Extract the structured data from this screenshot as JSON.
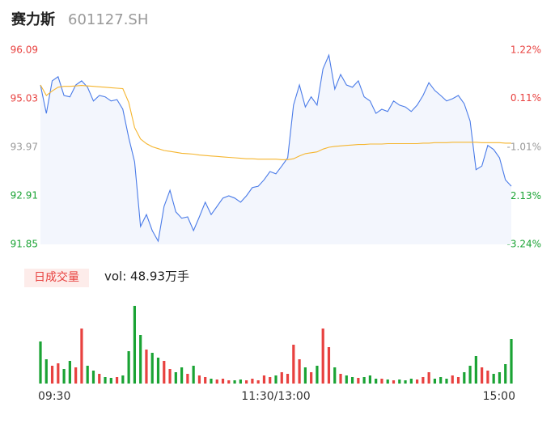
{
  "header": {
    "name": "赛力斯",
    "code": "601127.SH"
  },
  "chart_data": [
    {
      "type": "line",
      "xlim": [
        0,
        80
      ],
      "ylim": [
        91.85,
        96.09
      ],
      "yticks": [
        96.09,
        95.03,
        93.97,
        92.91,
        91.85
      ],
      "ytick_colors": [
        "#e8413f",
        "#e8413f",
        "#999999",
        "#1aa334",
        "#1aa334"
      ],
      "y2lim": [
        -3.24,
        1.22
      ],
      "y2ticks": [
        {
          "value": 1.22,
          "label": "1.22%"
        },
        {
          "value": 0.11,
          "label": "0.11%"
        },
        {
          "value": -1.01,
          "label": "-1.01%"
        },
        {
          "value": -2.13,
          "label": "-2.13%"
        },
        {
          "value": -3.24,
          "label": "-3.24%"
        }
      ],
      "y2tick_colors": [
        "#e8413f",
        "#e8413f",
        "#999999",
        "#1aa334",
        "#1aa334"
      ],
      "grid": false,
      "series": [
        {
          "color": "#4a7be8",
          "values": [
            95.33,
            94.71,
            95.42,
            95.51,
            95.1,
            95.07,
            95.33,
            95.42,
            95.28,
            94.98,
            95.1,
            95.07,
            94.98,
            95.01,
            94.8,
            94.18,
            93.65,
            92.24,
            92.5,
            92.15,
            91.92,
            92.68,
            93.03,
            92.56,
            92.42,
            92.45,
            92.15,
            92.45,
            92.77,
            92.5,
            92.68,
            92.86,
            92.91,
            92.86,
            92.77,
            92.91,
            93.09,
            93.12,
            93.26,
            93.44,
            93.39,
            93.56,
            93.74,
            94.89,
            95.33,
            94.85,
            95.07,
            94.89,
            95.68,
            95.98,
            95.24,
            95.56,
            95.33,
            95.28,
            95.42,
            95.07,
            94.98,
            94.71,
            94.8,
            94.75,
            94.98,
            94.89,
            94.85,
            94.75,
            94.89,
            95.1,
            95.38,
            95.21,
            95.1,
            94.98,
            95.03,
            95.1,
            94.92,
            94.54,
            93.48,
            93.56,
            94.01,
            93.92,
            93.74,
            93.26,
            93.12
          ]
        },
        {
          "color": "#f5b52e",
          "values": [
            95.33,
            95.1,
            95.2,
            95.28,
            95.3,
            95.3,
            95.31,
            95.32,
            95.31,
            95.3,
            95.29,
            95.28,
            95.27,
            95.26,
            95.25,
            94.95,
            94.4,
            94.15,
            94.05,
            93.98,
            93.94,
            93.9,
            93.88,
            93.86,
            93.84,
            93.83,
            93.82,
            93.8,
            93.79,
            93.78,
            93.77,
            93.76,
            93.75,
            93.74,
            93.73,
            93.72,
            93.72,
            93.71,
            93.71,
            93.71,
            93.71,
            93.7,
            93.7,
            93.72,
            93.78,
            93.83,
            93.85,
            93.87,
            93.93,
            93.97,
            93.99,
            94.0,
            94.01,
            94.02,
            94.03,
            94.03,
            94.04,
            94.04,
            94.04,
            94.05,
            94.05,
            94.05,
            94.05,
            94.05,
            94.05,
            94.06,
            94.06,
            94.07,
            94.07,
            94.07,
            94.08,
            94.08,
            94.08,
            94.08,
            94.08,
            94.07,
            94.07,
            94.07,
            94.07,
            94.06,
            94.06
          ]
        }
      ]
    },
    {
      "type": "bar",
      "title": "日成交量",
      "subtitle": "vol: 48.93万手",
      "xlim": [
        0,
        80
      ],
      "xticks": [
        {
          "value": 0,
          "label": "09:30"
        },
        {
          "value": 40,
          "label": "11:30/13:00"
        },
        {
          "value": 80,
          "label": "15:00"
        }
      ],
      "ylim": [
        0,
        100
      ],
      "up_color": "#e8413f",
      "down_color": "#1aa334",
      "values": [
        52,
        30,
        22,
        25,
        18,
        28,
        20,
        68,
        22,
        16,
        12,
        8,
        7,
        8,
        10,
        40,
        96,
        60,
        42,
        38,
        32,
        28,
        18,
        14,
        20,
        12,
        22,
        10,
        8,
        6,
        5,
        6,
        4,
        4,
        5,
        4,
        6,
        4,
        10,
        8,
        10,
        14,
        12,
        48,
        30,
        20,
        14,
        22,
        68,
        45,
        20,
        12,
        10,
        8,
        7,
        8,
        10,
        6,
        6,
        5,
        4,
        5,
        4,
        6,
        5,
        8,
        14,
        6,
        8,
        6,
        10,
        8,
        14,
        22,
        34,
        20,
        16,
        12,
        14,
        24,
        55
      ]
    }
  ]
}
